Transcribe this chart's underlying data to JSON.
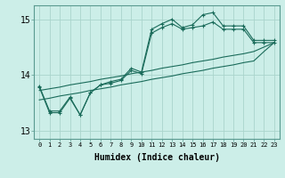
{
  "xlabel": "Humidex (Indice chaleur)",
  "background_color": "#cceee8",
  "grid_color": "#aad4cc",
  "line_color": "#1a6b5a",
  "xlim": [
    -0.5,
    23.5
  ],
  "ylim": [
    12.85,
    15.25
  ],
  "yticks": [
    13,
    14,
    15
  ],
  "xticks": [
    0,
    1,
    2,
    3,
    4,
    5,
    6,
    7,
    8,
    9,
    10,
    11,
    12,
    13,
    14,
    15,
    16,
    17,
    18,
    19,
    20,
    21,
    22,
    23
  ],
  "y_jagged1": [
    13.8,
    13.35,
    13.35,
    13.6,
    13.28,
    13.68,
    13.82,
    13.88,
    13.92,
    14.12,
    14.05,
    14.82,
    14.92,
    15.0,
    14.85,
    14.9,
    15.08,
    15.12,
    14.88,
    14.88,
    14.88,
    14.62,
    14.62,
    14.62
  ],
  "y_jagged2": [
    13.78,
    13.32,
    13.32,
    13.58,
    13.28,
    13.68,
    13.82,
    13.85,
    13.9,
    14.08,
    14.02,
    14.75,
    14.85,
    14.92,
    14.82,
    14.85,
    14.88,
    14.95,
    14.82,
    14.82,
    14.82,
    14.58,
    14.58,
    14.58
  ],
  "y_linear1": [
    13.72,
    13.75,
    13.78,
    13.82,
    13.85,
    13.88,
    13.92,
    13.95,
    13.98,
    14.02,
    14.05,
    14.08,
    14.12,
    14.15,
    14.18,
    14.22,
    14.25,
    14.28,
    14.32,
    14.35,
    14.38,
    14.42,
    14.5,
    14.58
  ],
  "y_linear2": [
    13.55,
    13.58,
    13.62,
    13.65,
    13.68,
    13.72,
    13.75,
    13.78,
    13.82,
    13.85,
    13.88,
    13.92,
    13.95,
    13.98,
    14.02,
    14.05,
    14.08,
    14.12,
    14.15,
    14.18,
    14.22,
    14.25,
    14.42,
    14.58
  ]
}
